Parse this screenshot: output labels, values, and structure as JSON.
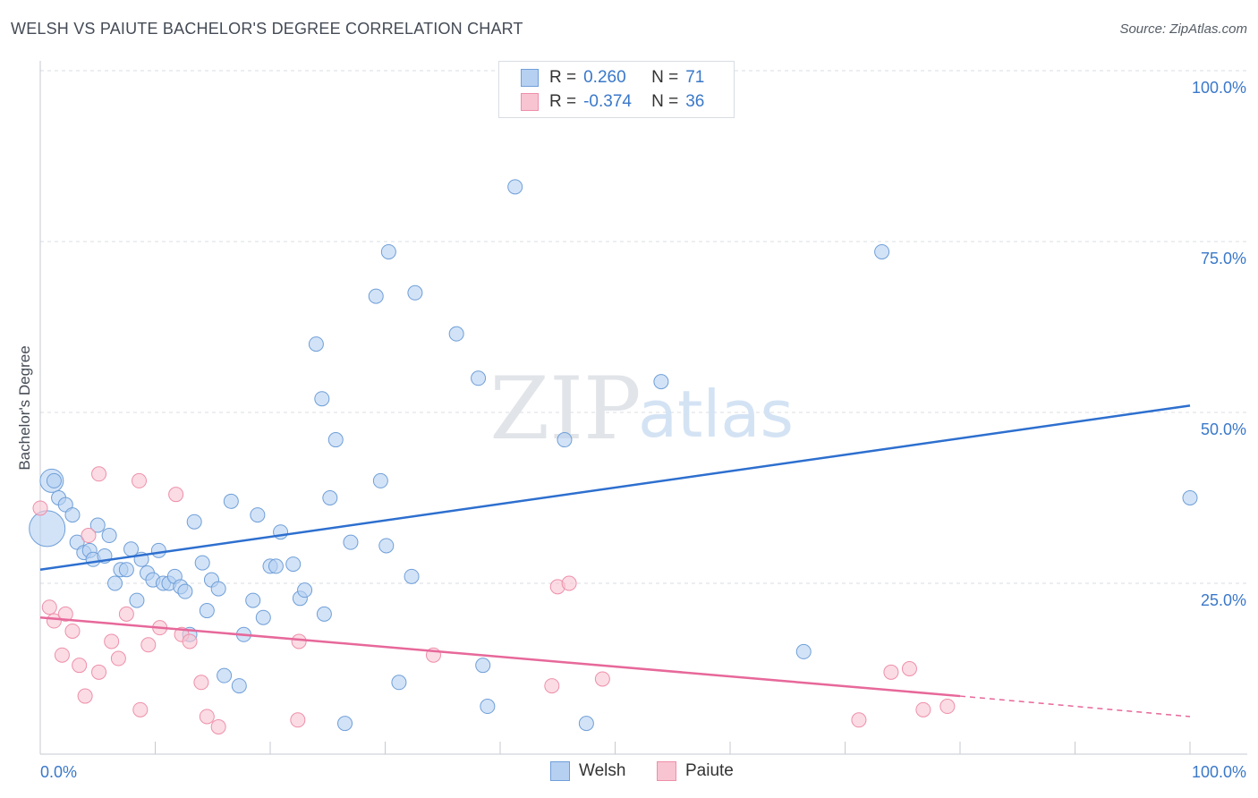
{
  "header": {
    "title": "WELSH VS PAIUTE BACHELOR'S DEGREE CORRELATION CHART",
    "source": "Source: ZipAtlas.com"
  },
  "watermark": {
    "zip": "ZIP",
    "atlas": "atlas"
  },
  "legend": {
    "rows": [
      {
        "r_label": "R =",
        "r_value": "0.260",
        "n_label": "N =",
        "n_value": "71"
      },
      {
        "r_label": "R =",
        "r_value": "-0.374",
        "n_label": "N =",
        "n_value": "36"
      }
    ]
  },
  "colors": {
    "welsh_fill": "#b6d0f2",
    "welsh_stroke": "#6f9fd8",
    "welsh_line": "#2d6fcf",
    "paiute_fill": "#f8c4d2",
    "paiute_stroke": "#ee8faa",
    "paiute_line": "#e7689a",
    "tick_label": "#3a78c9",
    "grid": "#d9dde3"
  },
  "chart_data": {
    "type": "scatter",
    "title": "WELSH VS PAIUTE BACHELOR'S DEGREE CORRELATION CHART",
    "xlabel": "",
    "ylabel": "Bachelor's Degree",
    "xlim": [
      0,
      100
    ],
    "ylim": [
      0,
      100
    ],
    "x_tick_labels": [
      "0.0%",
      "100.0%"
    ],
    "y_tick_labels": [
      "100.0%",
      "75.0%",
      "50.0%",
      "25.0%"
    ],
    "y_ticks": [
      100,
      75,
      50,
      25
    ],
    "grid": true,
    "legend_position": "bottom-center",
    "series": [
      {
        "name": "Welsh",
        "r": 0.26,
        "n": 71,
        "trend": {
          "x": [
            0,
            100
          ],
          "y": [
            27.0,
            51.0
          ]
        },
        "points": [
          [
            0.6,
            33.0,
            3
          ],
          [
            1.0,
            40.0,
            2
          ],
          [
            1.6,
            37.5,
            1
          ],
          [
            2.2,
            36.5,
            1
          ],
          [
            2.8,
            35.0,
            1
          ],
          [
            3.2,
            31.0,
            1
          ],
          [
            3.8,
            29.5,
            1
          ],
          [
            4.3,
            29.8,
            1
          ],
          [
            4.6,
            28.5,
            1
          ],
          [
            5.0,
            33.5,
            1
          ],
          [
            5.6,
            29.0,
            1
          ],
          [
            6.0,
            32.0,
            1
          ],
          [
            6.5,
            25.0,
            1
          ],
          [
            7.0,
            27.0,
            1
          ],
          [
            7.5,
            27.0,
            1
          ],
          [
            7.9,
            30.0,
            1
          ],
          [
            8.4,
            22.5,
            1
          ],
          [
            8.8,
            28.5,
            1
          ],
          [
            9.3,
            26.5,
            1
          ],
          [
            9.8,
            25.5,
            1
          ],
          [
            10.3,
            29.8,
            1
          ],
          [
            10.7,
            25.0,
            1
          ],
          [
            11.2,
            25.0,
            1
          ],
          [
            11.7,
            26.0,
            1
          ],
          [
            12.2,
            24.5,
            1
          ],
          [
            12.6,
            23.8,
            1
          ],
          [
            13.0,
            17.5,
            1
          ],
          [
            13.4,
            34.0,
            1
          ],
          [
            14.1,
            28.0,
            1
          ],
          [
            14.5,
            21.0,
            1
          ],
          [
            14.9,
            25.5,
            1
          ],
          [
            15.5,
            24.2,
            1
          ],
          [
            16.0,
            11.5,
            1
          ],
          [
            16.6,
            37.0,
            1
          ],
          [
            17.3,
            10.0,
            1
          ],
          [
            17.7,
            17.5,
            1
          ],
          [
            18.5,
            22.5,
            1
          ],
          [
            18.9,
            35.0,
            1
          ],
          [
            19.4,
            20.0,
            1
          ],
          [
            20.0,
            27.5,
            1
          ],
          [
            20.5,
            27.5,
            1
          ],
          [
            20.9,
            32.5,
            1
          ],
          [
            22.0,
            27.8,
            1
          ],
          [
            22.6,
            22.8,
            1
          ],
          [
            23.0,
            24.0,
            1
          ],
          [
            24.0,
            60.0,
            1
          ],
          [
            24.7,
            20.5,
            1
          ],
          [
            24.5,
            52.0,
            1
          ],
          [
            25.2,
            37.5,
            1
          ],
          [
            25.7,
            46.0,
            1
          ],
          [
            26.5,
            4.5,
            1
          ],
          [
            27.0,
            31.0,
            1
          ],
          [
            29.2,
            67.0,
            1
          ],
          [
            29.6,
            40.0,
            1
          ],
          [
            30.1,
            30.5,
            1
          ],
          [
            30.3,
            73.5,
            1
          ],
          [
            31.2,
            10.5,
            1
          ],
          [
            32.3,
            26.0,
            1
          ],
          [
            32.6,
            67.5,
            1
          ],
          [
            36.2,
            61.5,
            1
          ],
          [
            38.1,
            55.0,
            1
          ],
          [
            38.5,
            13.0,
            1
          ],
          [
            38.9,
            7.0,
            1
          ],
          [
            41.3,
            83.0,
            1
          ],
          [
            45.6,
            46.0,
            1
          ],
          [
            47.5,
            4.5,
            1
          ],
          [
            54.0,
            54.5,
            1
          ],
          [
            66.4,
            15.0,
            1
          ],
          [
            73.2,
            73.5,
            1
          ],
          [
            100.0,
            37.5,
            1
          ],
          [
            1.2,
            40.0,
            1
          ]
        ]
      },
      {
        "name": "Paiute",
        "r": -0.374,
        "n": 36,
        "trend": {
          "x": [
            0,
            80
          ],
          "y": [
            20.0,
            8.5
          ]
        },
        "trend_dashed": {
          "x": [
            80,
            100
          ],
          "y": [
            8.5,
            5.5
          ]
        },
        "points": [
          [
            0.0,
            36.0,
            1
          ],
          [
            0.8,
            21.5,
            1
          ],
          [
            1.2,
            19.5,
            1
          ],
          [
            1.9,
            14.5,
            1
          ],
          [
            2.2,
            20.5,
            1
          ],
          [
            2.8,
            18.0,
            1
          ],
          [
            3.4,
            13.0,
            1
          ],
          [
            3.9,
            8.5,
            1
          ],
          [
            4.2,
            32.0,
            1
          ],
          [
            5.1,
            12.0,
            1
          ],
          [
            5.1,
            41.0,
            1
          ],
          [
            6.2,
            16.5,
            1
          ],
          [
            6.8,
            14.0,
            1
          ],
          [
            7.5,
            20.5,
            1
          ],
          [
            8.6,
            40.0,
            1
          ],
          [
            8.7,
            6.5,
            1
          ],
          [
            9.4,
            16.0,
            1
          ],
          [
            10.4,
            18.5,
            1
          ],
          [
            11.8,
            38.0,
            1
          ],
          [
            12.3,
            17.5,
            1
          ],
          [
            13.0,
            16.5,
            1
          ],
          [
            14.0,
            10.5,
            1
          ],
          [
            14.5,
            5.5,
            1
          ],
          [
            15.5,
            4.0,
            1
          ],
          [
            22.5,
            16.5,
            1
          ],
          [
            22.4,
            5.0,
            1
          ],
          [
            34.2,
            14.5,
            1
          ],
          [
            44.5,
            10.0,
            1
          ],
          [
            45.0,
            24.5,
            1
          ],
          [
            46.0,
            25.0,
            1
          ],
          [
            48.9,
            11.0,
            1
          ],
          [
            71.2,
            5.0,
            1
          ],
          [
            74.0,
            12.0,
            1
          ],
          [
            75.6,
            12.5,
            1
          ],
          [
            76.8,
            6.5,
            1
          ],
          [
            78.9,
            7.0,
            1
          ]
        ]
      }
    ]
  }
}
